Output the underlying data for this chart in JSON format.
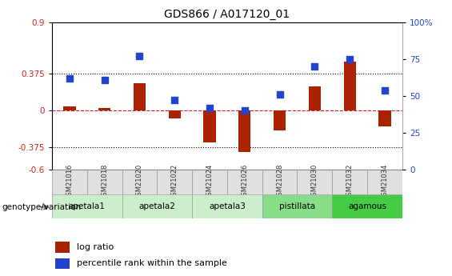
{
  "title": "GDS866 / A017120_01",
  "samples": [
    "GSM21016",
    "GSM21018",
    "GSM21020",
    "GSM21022",
    "GSM21024",
    "GSM21026",
    "GSM21028",
    "GSM21030",
    "GSM21032",
    "GSM21034"
  ],
  "log_ratio": [
    0.04,
    0.03,
    0.28,
    -0.08,
    -0.32,
    -0.42,
    -0.2,
    0.25,
    0.5,
    -0.16
  ],
  "percentile_rank": [
    62,
    61,
    77,
    47,
    42,
    40,
    51,
    70,
    75,
    54
  ],
  "groups": [
    {
      "name": "apetala1",
      "indices": [
        0,
        1
      ],
      "color": "#cceecc"
    },
    {
      "name": "apetala2",
      "indices": [
        2,
        3
      ],
      "color": "#cceecc"
    },
    {
      "name": "apetala3",
      "indices": [
        4,
        5
      ],
      "color": "#cceecc"
    },
    {
      "name": "pistillata",
      "indices": [
        6,
        7
      ],
      "color": "#88dd88"
    },
    {
      "name": "agamous",
      "indices": [
        8,
        9
      ],
      "color": "#44cc44"
    }
  ],
  "ylim_left": [
    -0.6,
    0.9
  ],
  "ylim_right": [
    0,
    100
  ],
  "yticks_left": [
    -0.6,
    -0.375,
    0.0,
    0.375,
    0.9
  ],
  "ytick_labels_left": [
    "-0.6",
    "-0.375",
    "0",
    "0.375",
    "0.9"
  ],
  "yticks_right": [
    0,
    25,
    50,
    75,
    100
  ],
  "ytick_labels_right": [
    "0",
    "25",
    "50",
    "75",
    "100%"
  ],
  "hlines": [
    0.375,
    -0.375
  ],
  "bar_color": "#aa2200",
  "dot_color": "#2244cc",
  "bar_width": 0.35,
  "dot_size": 6,
  "legend_log_ratio": "log ratio",
  "legend_percentile": "percentile rank within the sample",
  "genotype_label": "genotype/variation"
}
